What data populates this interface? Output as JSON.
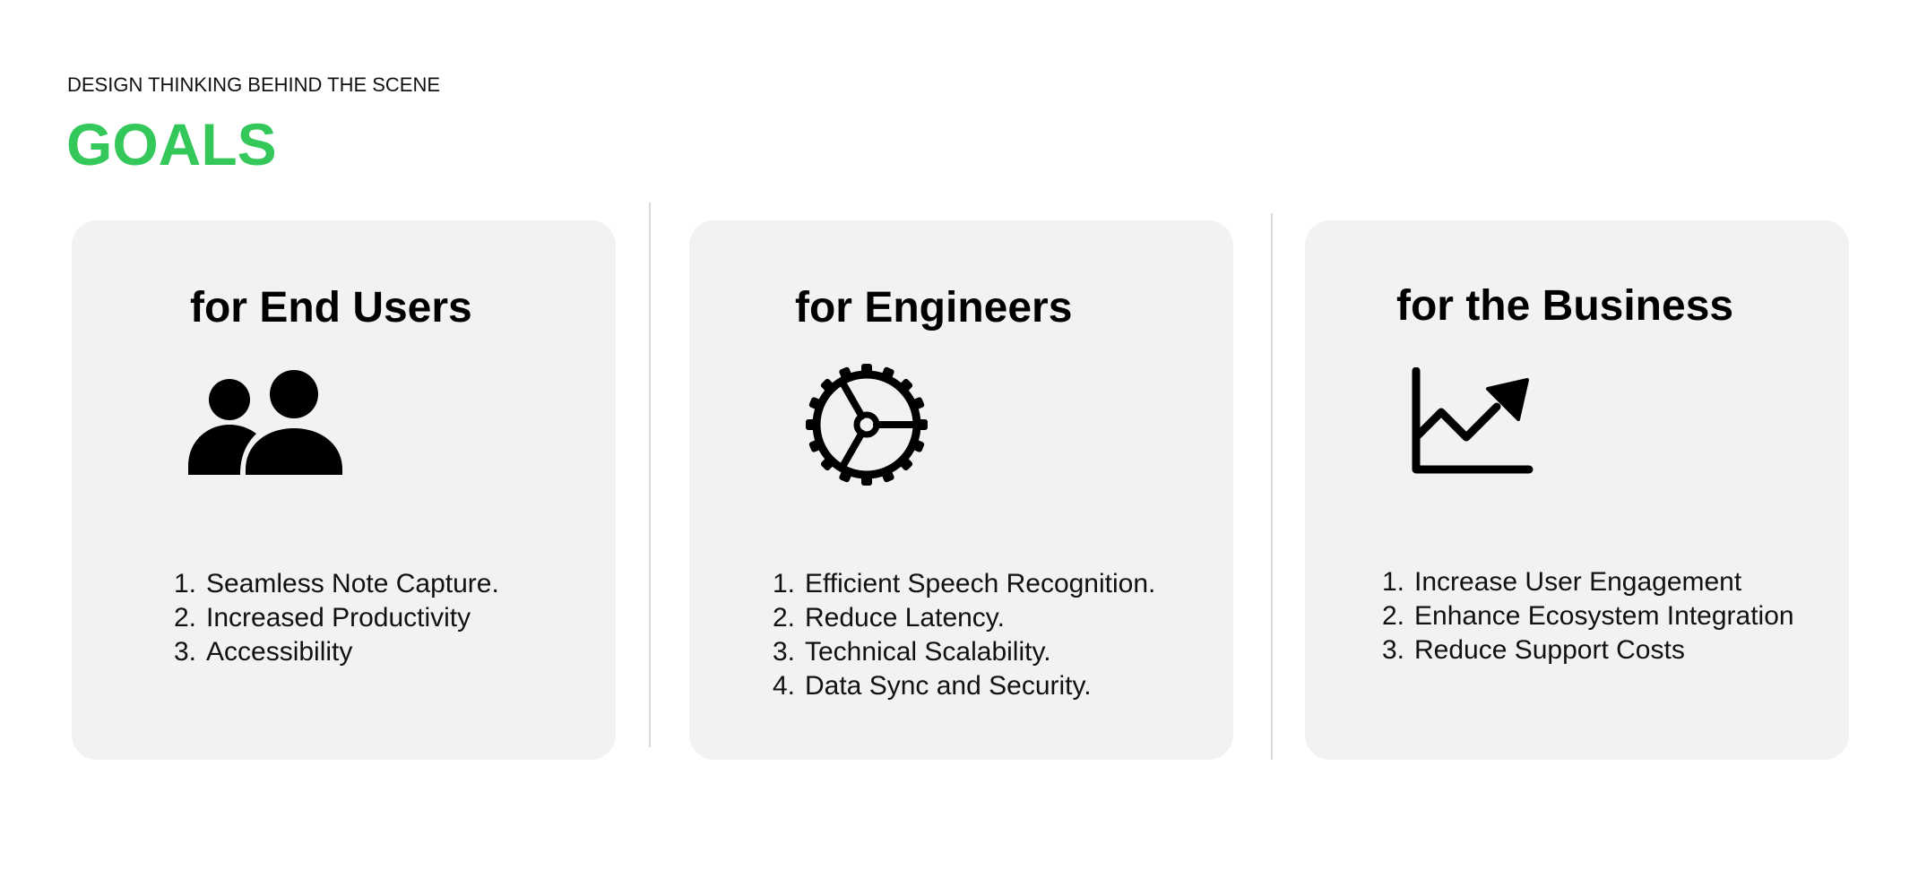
{
  "header": {
    "eyebrow": "DESIGN THINKING BEHIND THE SCENE",
    "title": "GOALS"
  },
  "colors": {
    "accent": "#34c759",
    "card_background": "#f2f2f4",
    "divider": "#d8d8dc"
  },
  "cards": [
    {
      "title": "for End Users",
      "icon": "people-icon",
      "items": [
        {
          "num": "1.",
          "text": "Seamless Note Capture."
        },
        {
          "num": "2.",
          "text": "Increased Productivity"
        },
        {
          "num": "3.",
          "text": "Accessibility"
        }
      ]
    },
    {
      "title": "for Engineers",
      "icon": "gear-icon",
      "items": [
        {
          "num": "1.",
          "text": "Efficient Speech Recognition."
        },
        {
          "num": "2.",
          "text": "Reduce Latency."
        },
        {
          "num": "3.",
          "text": "Technical Scalability."
        },
        {
          "num": "4.",
          "text": "Data Sync and Security."
        }
      ]
    },
    {
      "title": "for the Business",
      "icon": "growth-chart-icon",
      "items": [
        {
          "num": "1.",
          "text": "Increase User Engagement"
        },
        {
          "num": "2.",
          "text": "Enhance Ecosystem Integration"
        },
        {
          "num": "3.",
          "text": "Reduce Support Costs"
        }
      ]
    }
  ]
}
